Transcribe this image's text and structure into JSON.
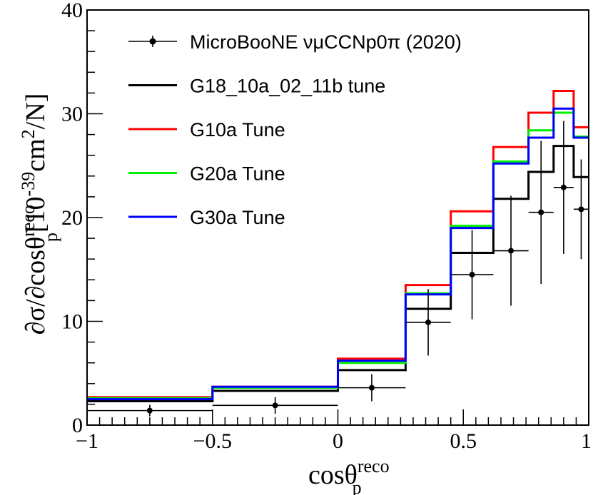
{
  "chart_data": {
    "type": "line",
    "xlabel": "cosθ_p^reco",
    "ylabel": "∂σ/∂cosθ_p^reco[10^-39cm^2/N]",
    "xlim": [
      -1,
      1
    ],
    "ylim": [
      0,
      40
    ],
    "x_ticks": [
      "−1",
      "−0.5",
      "0",
      "0.5",
      "1"
    ],
    "y_ticks": [
      "0",
      "10",
      "20",
      "30",
      "40"
    ],
    "bin_edges": [
      -1,
      -0.5,
      0,
      0.27,
      0.45,
      0.62,
      0.76,
      0.86,
      0.94,
      1
    ],
    "data": {
      "name": "MicroBooNE νμCCNp0π (2020)",
      "x": [
        -0.75,
        -0.25,
        0.135,
        0.36,
        0.535,
        0.69,
        0.81,
        0.9,
        0.97
      ],
      "y": [
        1.4,
        1.9,
        3.6,
        9.9,
        14.5,
        16.8,
        20.5,
        22.9,
        20.8
      ],
      "yerr": [
        0.55,
        0.8,
        1.3,
        3.2,
        4.3,
        5.3,
        6.9,
        6.4,
        4.8
      ],
      "xerr_low": [
        0.25,
        0.25,
        0.135,
        0.09,
        0.085,
        0.07,
        0.05,
        0.04,
        0.03
      ],
      "xerr_high": [
        0.25,
        0.25,
        0.135,
        0.09,
        0.085,
        0.07,
        0.05,
        0.04,
        0.03
      ]
    },
    "series": [
      {
        "name": "G18_10a_02_11b tune",
        "color": "#000000",
        "values": [
          2.3,
          3.3,
          5.3,
          11.2,
          16.6,
          21.8,
          24.4,
          26.9,
          23.9
        ]
      },
      {
        "name": "G10a Tune",
        "color": "#ff0000",
        "values": [
          2.7,
          3.7,
          6.4,
          13.5,
          20.6,
          26.8,
          30.1,
          32.2,
          28.7
        ]
      },
      {
        "name": "G20a Tune",
        "color": "#00ee00",
        "values": [
          2.6,
          3.6,
          6.0,
          12.7,
          19.2,
          25.4,
          28.4,
          30.1,
          27.8
        ]
      },
      {
        "name": "G30a Tune",
        "color": "#0000ff",
        "values": [
          2.5,
          3.7,
          6.2,
          12.6,
          19.0,
          25.2,
          27.7,
          30.5,
          27.7
        ]
      }
    ]
  }
}
